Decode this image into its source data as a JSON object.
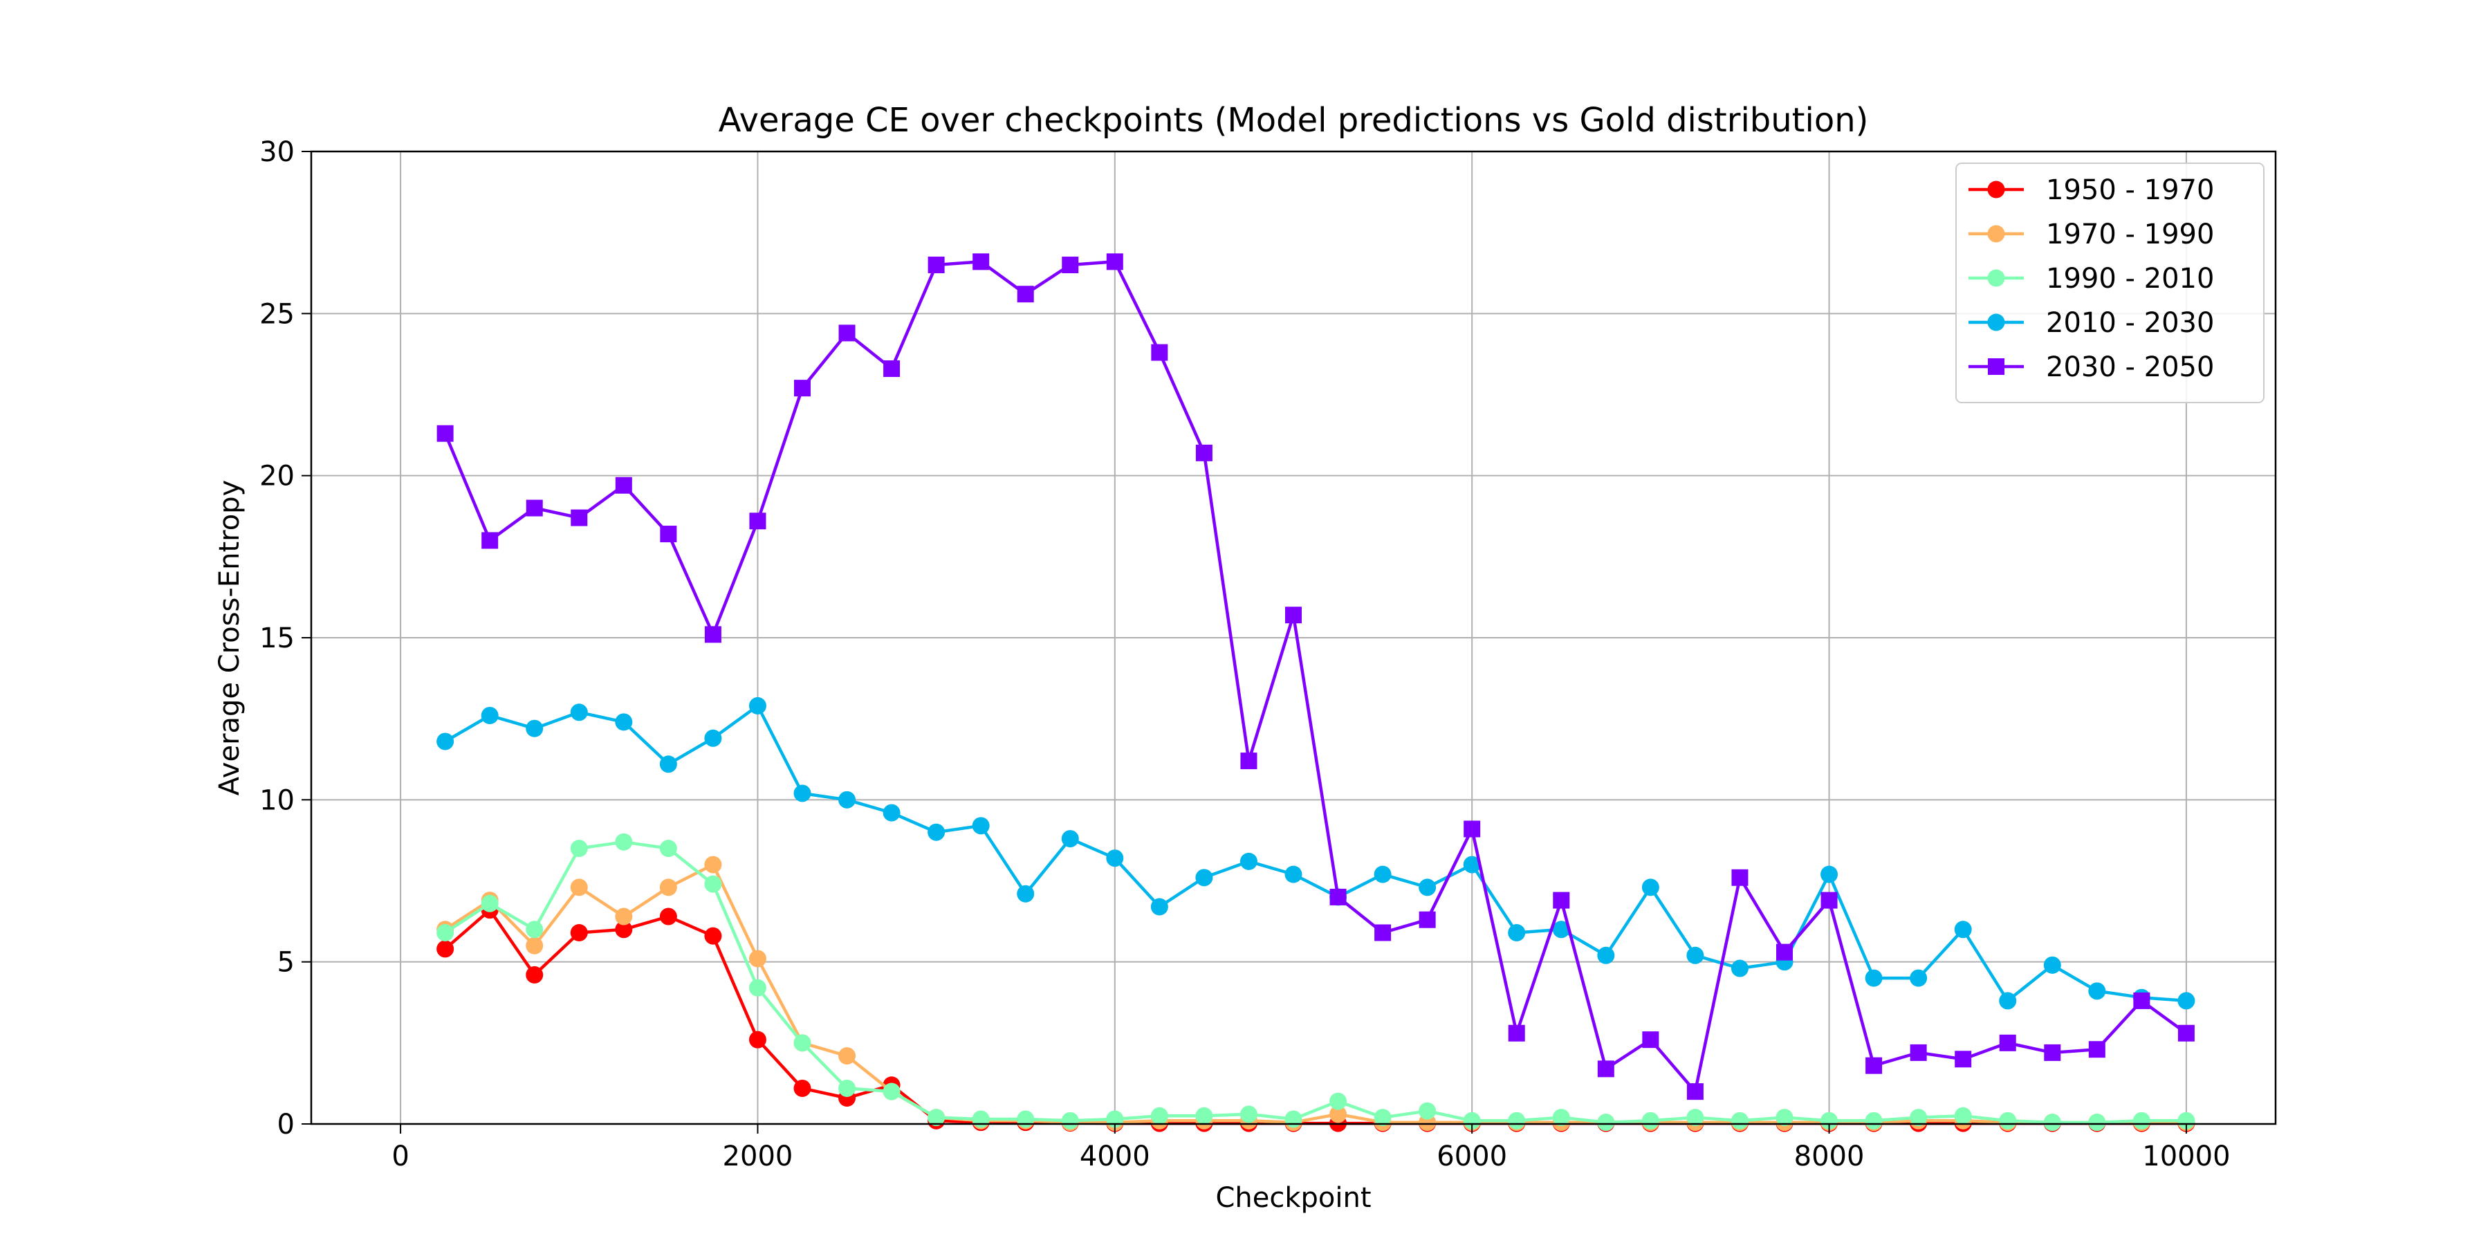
{
  "chart_data": {
    "type": "line",
    "title": "Average CE over checkpoints (Model predictions vs Gold distribution)",
    "xlabel": "Checkpoint",
    "ylabel": "Average Cross-Entropy",
    "xlim": [
      -500,
      10500
    ],
    "ylim": [
      0,
      30
    ],
    "xticks": [
      0,
      2000,
      4000,
      6000,
      8000,
      10000
    ],
    "yticks": [
      0,
      5,
      10,
      15,
      20,
      25,
      30
    ],
    "grid": true,
    "legend_position": "top-right",
    "x": [
      250,
      500,
      750,
      1000,
      1250,
      1500,
      1750,
      2000,
      2250,
      2500,
      2750,
      3000,
      3250,
      3500,
      3750,
      4000,
      4250,
      4500,
      4750,
      5000,
      5250,
      5500,
      5750,
      6000,
      6250,
      6500,
      6750,
      7000,
      7250,
      7500,
      7750,
      8000,
      8250,
      8500,
      8750,
      9000,
      9250,
      9500,
      9750,
      10000
    ],
    "series": [
      {
        "name": "1950 - 1970",
        "color": "#ff0000",
        "marker": "circle",
        "values": [
          5.4,
          6.6,
          4.6,
          5.9,
          6.0,
          6.4,
          5.8,
          2.6,
          1.1,
          0.8,
          1.2,
          0.1,
          0.05,
          0.05,
          0.03,
          0.02,
          0.02,
          0.02,
          0.02,
          0.02,
          0.02,
          0.02,
          0.02,
          0.02,
          0.02,
          0.02,
          0.02,
          0.02,
          0.02,
          0.02,
          0.02,
          0.02,
          0.02,
          0.02,
          0.02,
          0.02,
          0.02,
          0.02,
          0.02,
          0.02
        ]
      },
      {
        "name": "1970 - 1990",
        "color": "#ffb360",
        "marker": "circle",
        "values": [
          6.0,
          6.9,
          5.5,
          7.3,
          6.4,
          7.3,
          8.0,
          5.1,
          2.5,
          2.1,
          1.0,
          0.2,
          0.1,
          0.1,
          0.05,
          0.05,
          0.1,
          0.1,
          0.1,
          0.05,
          0.3,
          0.05,
          0.05,
          0.05,
          0.05,
          0.05,
          0.05,
          0.05,
          0.05,
          0.05,
          0.05,
          0.05,
          0.05,
          0.1,
          0.1,
          0.05,
          0.05,
          0.05,
          0.05,
          0.05
        ]
      },
      {
        "name": "1990 - 2010",
        "color": "#80ffb4",
        "marker": "circle",
        "values": [
          5.9,
          6.8,
          6.0,
          8.5,
          8.7,
          8.5,
          7.4,
          4.2,
          2.5,
          1.1,
          1.0,
          0.2,
          0.15,
          0.15,
          0.1,
          0.15,
          0.25,
          0.25,
          0.3,
          0.15,
          0.7,
          0.2,
          0.4,
          0.1,
          0.1,
          0.2,
          0.05,
          0.1,
          0.2,
          0.1,
          0.2,
          0.1,
          0.1,
          0.2,
          0.25,
          0.1,
          0.05,
          0.05,
          0.1,
          0.1
        ]
      },
      {
        "name": "2010 - 2030",
        "color": "#00b4ec",
        "marker": "circle",
        "values": [
          11.8,
          12.6,
          12.2,
          12.7,
          12.4,
          11.1,
          11.9,
          12.9,
          10.2,
          10.0,
          9.6,
          9.0,
          9.2,
          7.1,
          8.8,
          8.2,
          6.7,
          7.6,
          8.1,
          7.7,
          7.0,
          7.7,
          7.3,
          8.0,
          5.9,
          6.0,
          5.2,
          7.3,
          5.2,
          4.8,
          5.0,
          7.7,
          4.5,
          4.5,
          6.0,
          3.8,
          4.9,
          4.1,
          3.9,
          3.8
        ]
      },
      {
        "name": "2030 - 2050",
        "color": "#8000ff",
        "marker": "square",
        "values": [
          21.3,
          18.0,
          19.0,
          18.7,
          19.7,
          18.2,
          15.1,
          18.6,
          22.7,
          24.4,
          23.3,
          26.5,
          26.6,
          25.6,
          26.5,
          26.6,
          23.8,
          20.7,
          11.2,
          15.7,
          7.0,
          5.9,
          6.3,
          9.1,
          2.8,
          6.9,
          1.7,
          2.6,
          1.0,
          7.6,
          5.3,
          6.9,
          1.8,
          2.2,
          2.0,
          2.5,
          2.2,
          2.3,
          3.8,
          2.8
        ]
      }
    ]
  }
}
